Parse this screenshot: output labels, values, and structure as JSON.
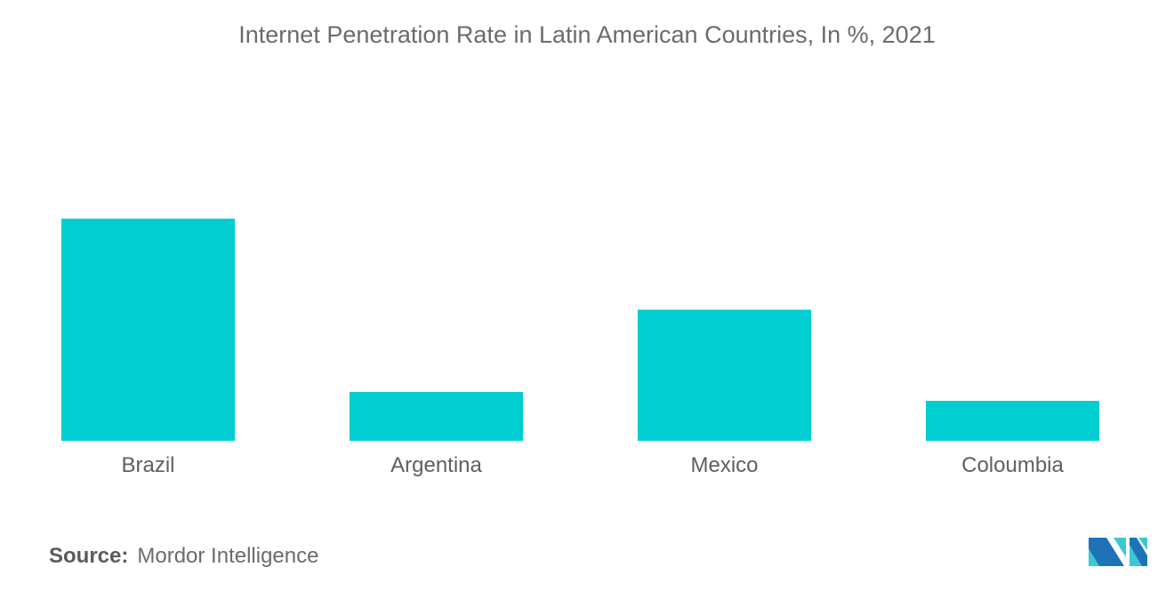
{
  "chart_data": {
    "type": "bar",
    "title": "Internet Penetration Rate in Latin American Countries, In %, 2021",
    "categories": [
      "Brazil",
      "Argentina",
      "Mexico",
      "Coloumbia"
    ],
    "values": [
      100,
      22,
      59,
      18
    ],
    "xlabel": "",
    "ylabel": "",
    "ylim": [
      0,
      100
    ],
    "grid": false,
    "bar_color": "#00CED1"
  },
  "source": {
    "label": "Source:",
    "text": "Mordor Intelligence"
  },
  "logo": {
    "text": "Mordor Intelligence",
    "colors": [
      "#1E73B8",
      "#3CC8D0"
    ]
  }
}
